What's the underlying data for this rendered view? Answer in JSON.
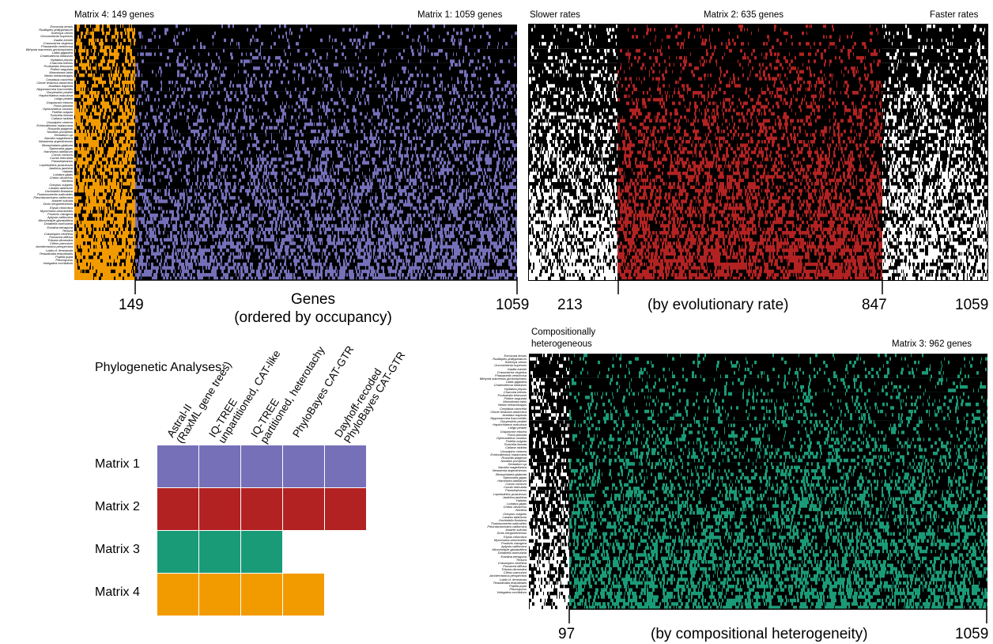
{
  "colors": {
    "matrix1": "#7570b8",
    "matrix2": "#b22222",
    "matrix3": "#1a9b78",
    "matrix4": "#f29b00",
    "absent": "#000000",
    "present_outside": "#ffffff"
  },
  "panel1": {
    "label_left": "Matrix 4: 149 genes",
    "label_right": "Matrix 1: 1059 genes",
    "tick_149": "149",
    "tick_1059": "1059",
    "axis_title_line1": "Genes",
    "axis_title_line2": "(ordered by occupancy)"
  },
  "panel2": {
    "label_left": "Slower rates",
    "label_center": "Matrix 2: 635 genes",
    "label_right": "Faster rates",
    "tick_213": "213",
    "axis_title": "(by evolutionary rate)",
    "tick_847": "847",
    "tick_1059": "1059"
  },
  "panel3": {
    "label_left_line1": "Compositionally",
    "label_left_line2": "heterogeneous",
    "label_right": "Matrix 3: 962 genes",
    "tick_97": "97",
    "axis_title": "(by compositional heterogeneity)",
    "tick_1059": "1059"
  },
  "analyses": {
    "title": "Phylogenetic Analyses:",
    "columns": [
      {
        "line1": "Astral-II",
        "line2": "(RaxML gene trees)"
      },
      {
        "line1": "IQ-TREE",
        "line2": "unpartitioned, CAT-like"
      },
      {
        "line1": "IQ-TREE",
        "line2": "partitioned, heterotachy"
      },
      {
        "line1": "PhyloBayes CAT-GTR",
        "line2": ""
      },
      {
        "line1": "Dayhoff-recoded",
        "line2": "PhyloBayes CAT-GTR"
      }
    ],
    "rows": [
      {
        "label": "Matrix 1",
        "color": "#7570b8",
        "cells": [
          1,
          1,
          1,
          1,
          1
        ]
      },
      {
        "label": "Matrix 2",
        "color": "#b22222",
        "cells": [
          1,
          1,
          1,
          1,
          1
        ]
      },
      {
        "label": "Matrix 3",
        "color": "#1a9b78",
        "cells": [
          1,
          1,
          1,
          0,
          0
        ]
      },
      {
        "label": "Matrix 4",
        "color": "#f29b00",
        "cells": [
          1,
          1,
          1,
          1,
          0
        ]
      }
    ]
  },
  "taxa": [
    "Ennucula tenuis",
    "Rudilapes philippinarum",
    "Solemya velum",
    "Oncomelania hupensis",
    "Gadila tolmiei",
    "Crassostrea virginica",
    "Phasianella ventricosa",
    "Bithynia siamensis goniomphalos",
    "Lottia gigantea",
    "Chaetoderma nitidulum",
    "Hydatina physis",
    "Charonia tritonis",
    "Prothalotia lehmanni",
    "Philine angulata",
    "Monodonta labio",
    "Nerita melanotragus",
    "Crepidula navicella",
    "Clione limacina antarctica",
    "Anadara trapezia",
    "Nipponacmea fuscoviridis",
    "Doryteuthis pealeii",
    "Haplochlaena maculosa",
    "Loligo pealeii",
    "Graptacme eborea",
    "Fiona pinnata",
    "Ophicardelus ornatus",
    "Patella vulgata",
    "Tonicella lineata",
    "Callana radiata",
    "Uroxalpinx cinerea",
    "Echinolittorina malaccana",
    "Rossella pidgeoni",
    "Nautilus pompilius",
    "Dentalium sp",
    "Nacella magellanica",
    "Neotaenia argentinensis",
    "Biomphalaria glabrata",
    "Siphonaria gigas",
    "Haminoea antillarum",
    "Conus consors",
    "Cumia reticulata",
    "Parastephanus",
    "Lepetodrilus pustulosus",
    "Janthina janthina",
    "Haliotis",
    "Lobatus gigas",
    "Chiton olivaceus",
    "Neritina",
    "Octopus vulgaris",
    "Lasaea adansoni",
    "Onchidella floridana",
    "Thalassonerita naticoides",
    "Pleurobranchaea californica",
    "Astarte sulcata",
    "Doris kerguelenensis",
    "Elysia chlorotica",
    "Myochama anomioides",
    "Prodoris clavigera",
    "Aplysia californica",
    "Microhedyle glandulifera",
    "Dolabella auricularia",
    "Entalina tetragona",
    "Tectura",
    "Crassispira cerithina",
    "Pomacea diffusa",
    "Tritonia diomedea",
    "Cithon parvulum",
    "Architectonica perspectiva",
    "Lottia cf. fenestrata",
    "Testudinalia testudinalis",
    "Pupilla pupa",
    "Pleuroporus",
    "Volegalea cochlidium"
  ]
}
